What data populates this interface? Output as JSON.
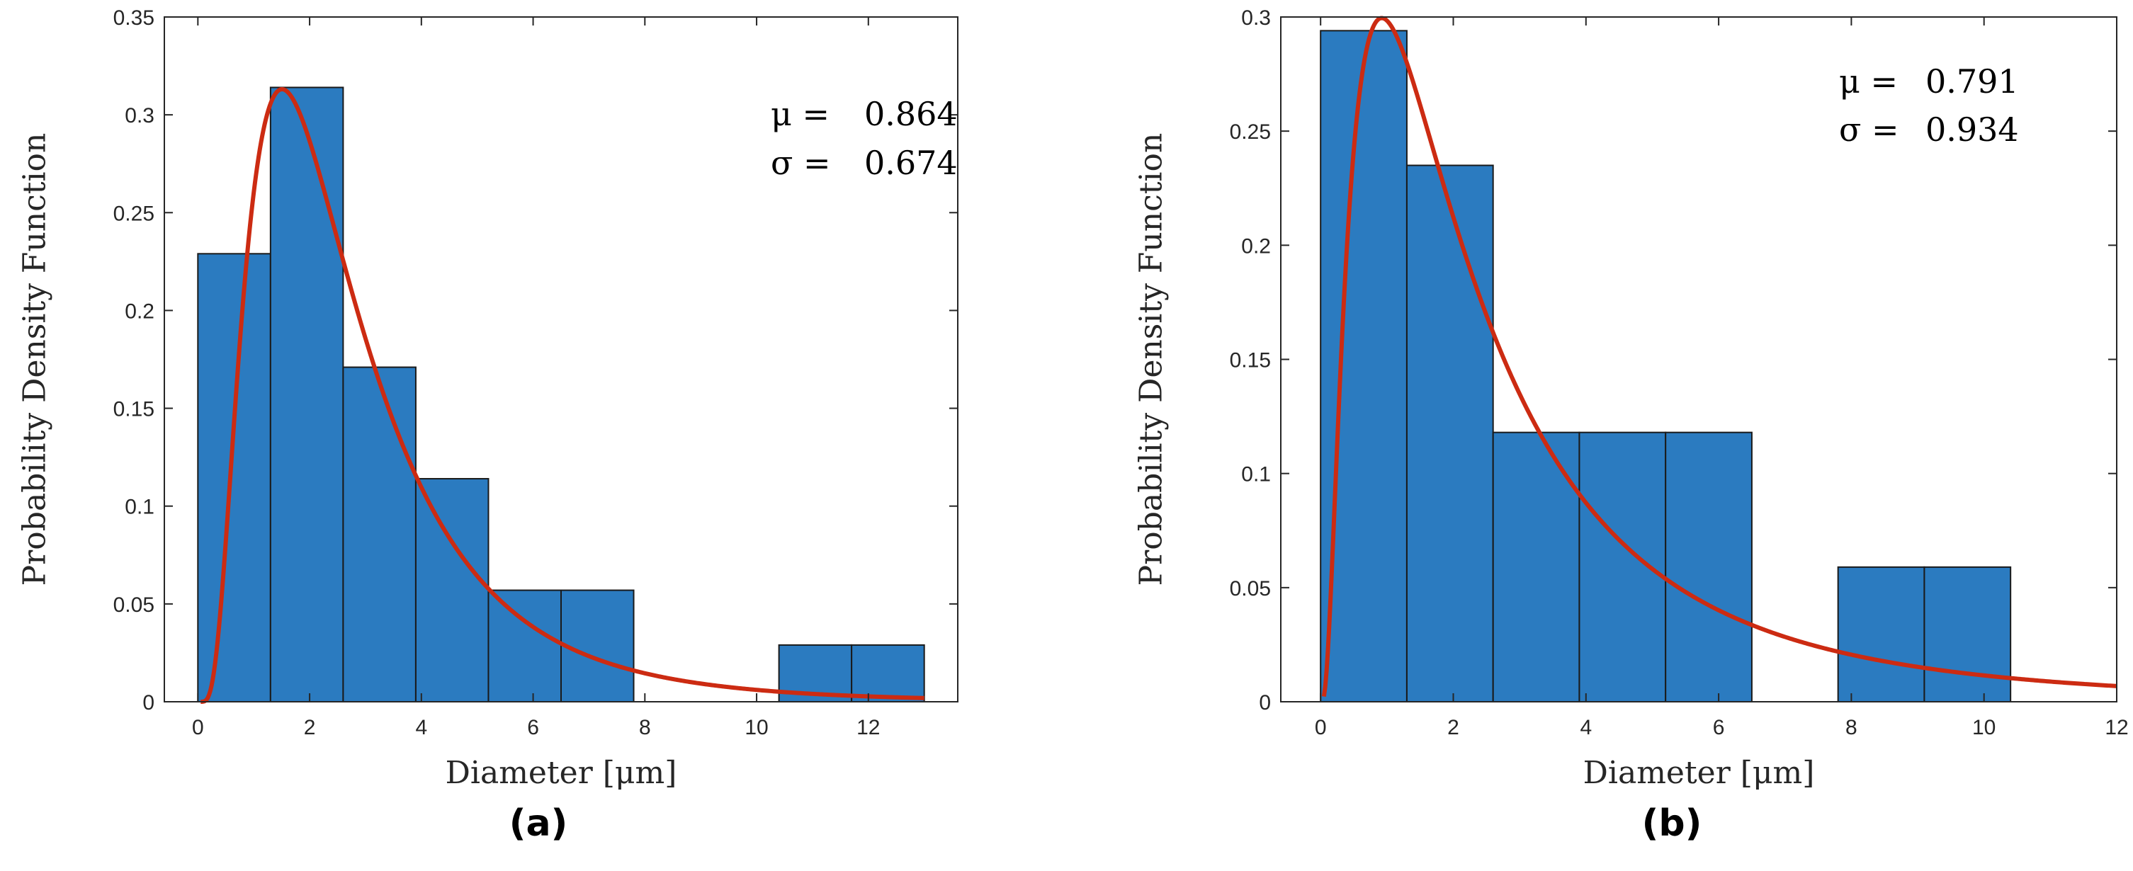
{
  "colors": {
    "bar": "#2b7bc0",
    "bar_edge": "#1a1a1a",
    "curve": "#cc2b12",
    "axis": "#262626"
  },
  "chart_data": [
    {
      "type": "bar",
      "caption": "(a)",
      "xlabel": "Diameter [μm]",
      "ylabel": "Probability Density Function",
      "xlim": [
        -0.6,
        13.6
      ],
      "ylim": [
        0,
        0.35
      ],
      "xticks": [
        0,
        2,
        4,
        6,
        8,
        10,
        12
      ],
      "yticks": [
        0,
        0.05,
        0.1,
        0.15,
        0.2,
        0.25,
        0.3,
        0.35
      ],
      "ytick_labels": [
        "0",
        "0.05",
        "0.1",
        "0.15",
        "0.2",
        "0.25",
        "0.3",
        "0.35"
      ],
      "bins": [
        {
          "x0": 0,
          "x1": 1.3,
          "value": 0.229
        },
        {
          "x0": 1.3,
          "x1": 2.6,
          "value": 0.314
        },
        {
          "x0": 2.6,
          "x1": 3.9,
          "value": 0.171
        },
        {
          "x0": 3.9,
          "x1": 5.2,
          "value": 0.114
        },
        {
          "x0": 5.2,
          "x1": 6.5,
          "value": 0.057
        },
        {
          "x0": 6.5,
          "x1": 7.8,
          "value": 0.057
        },
        {
          "x0": 10.4,
          "x1": 11.7,
          "value": 0.029
        },
        {
          "x0": 11.7,
          "x1": 13.0,
          "value": 0.029
        }
      ],
      "fit": {
        "distribution": "lognormal",
        "mu": 0.864,
        "sigma": 0.674,
        "x_start": 0.05,
        "x_end": 13.0
      },
      "annotation": {
        "mu_label": "μ =",
        "mu_value": "0.864",
        "sigma_label": "σ =",
        "sigma_value": "0.674"
      }
    },
    {
      "type": "bar",
      "caption": "(b)",
      "xlabel": "Diameter [μm]",
      "ylabel": "Probability Density Function",
      "xlim": [
        -0.6,
        12.0
      ],
      "ylim": [
        0,
        0.3
      ],
      "xticks": [
        0,
        2,
        4,
        6,
        8,
        10,
        12
      ],
      "yticks": [
        0,
        0.05,
        0.1,
        0.15,
        0.2,
        0.25,
        0.3
      ],
      "ytick_labels": [
        "0",
        "0.05",
        "0.1",
        "0.15",
        "0.2",
        "0.25",
        "0.3"
      ],
      "bins": [
        {
          "x0": 0,
          "x1": 1.3,
          "value": 0.294
        },
        {
          "x0": 1.3,
          "x1": 2.6,
          "value": 0.235
        },
        {
          "x0": 2.6,
          "x1": 3.9,
          "value": 0.118
        },
        {
          "x0": 3.9,
          "x1": 5.2,
          "value": 0.118
        },
        {
          "x0": 5.2,
          "x1": 6.5,
          "value": 0.118
        },
        {
          "x0": 7.8,
          "x1": 9.1,
          "value": 0.059
        },
        {
          "x0": 9.1,
          "x1": 10.4,
          "value": 0.059
        }
      ],
      "fit": {
        "distribution": "lognormal",
        "mu": 0.791,
        "sigma": 0.934,
        "x_start": 0.05,
        "x_end": 12.0
      },
      "annotation": {
        "mu_label": "μ =",
        "mu_value": "0.791",
        "sigma_label": "σ =",
        "sigma_value": "0.934"
      }
    }
  ]
}
